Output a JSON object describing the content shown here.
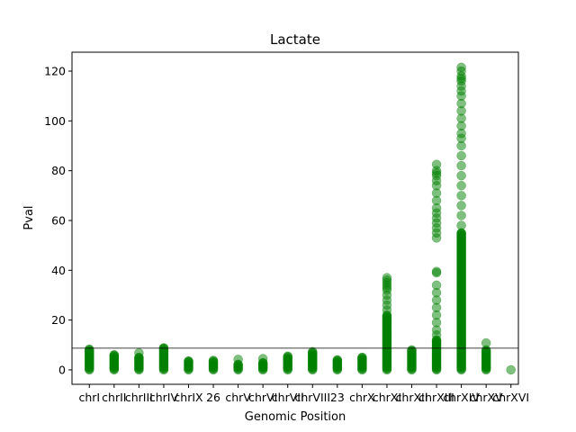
{
  "chart_data": {
    "type": "scatter",
    "title": "Lactate",
    "xlabel": "Genomic Position",
    "ylabel": "Pval",
    "ylim": [
      -5.8,
      127.6
    ],
    "yticks": [
      0,
      20,
      40,
      60,
      80,
      100,
      120
    ],
    "categories": [
      "chrI",
      "chrII",
      "chrIII",
      "chrIV",
      "chrIX",
      "26",
      "chrV",
      "chrVI",
      "chrVII",
      "chrVIII",
      "23",
      "chrX",
      "chrXI",
      "chrXII",
      "chrXIII",
      "chrXIV",
      "chrXV",
      "chrXVI"
    ],
    "threshold": 8.7,
    "grid": false,
    "legend": "none",
    "marker_color": "#008000",
    "marker_alpha": 0.5,
    "series": [
      {
        "points_by_category": [
          {
            "category": "chrI",
            "dense_max": 8.3,
            "extra": []
          },
          {
            "category": "chrII",
            "dense_max": 6.0,
            "extra": []
          },
          {
            "category": "chrIII",
            "dense_max": 5.0,
            "extra": [
              6.8
            ]
          },
          {
            "category": "chrIV",
            "dense_max": 8.8,
            "extra": []
          },
          {
            "category": "chrIX",
            "dense_max": 3.5,
            "extra": []
          },
          {
            "category": "26",
            "dense_max": 3.8,
            "extra": []
          },
          {
            "category": "chrV",
            "dense_max": 2.2,
            "extra": [
              4.2
            ]
          },
          {
            "category": "chrVI",
            "dense_max": 2.8,
            "extra": [
              4.5
            ]
          },
          {
            "category": "chrVII",
            "dense_max": 5.5,
            "extra": []
          },
          {
            "category": "chrVIII",
            "dense_max": 7.3,
            "extra": []
          },
          {
            "category": "23",
            "dense_max": 4.0,
            "extra": []
          },
          {
            "category": "chrX",
            "dense_max": 5.0,
            "extra": []
          },
          {
            "category": "chrXI",
            "dense_max": 22.0,
            "extra": [
              24,
              26,
              28,
              30,
              32,
              33,
              34,
              35,
              36,
              37
            ]
          },
          {
            "category": "chrXII",
            "dense_max": 8.0,
            "extra": []
          },
          {
            "category": "chrXIII",
            "dense_max": 12.0,
            "extra": [
              14,
              16,
              19,
              22,
              25,
              28,
              31,
              34,
              39,
              39.5,
              53,
              55,
              57,
              59,
              61,
              63,
              65,
              68,
              71,
              74,
              76,
              78,
              79,
              80,
              82.5
            ]
          },
          {
            "category": "chrXIV",
            "dense_max": 55.0,
            "extra": [
              58,
              62,
              66,
              70,
              74,
              78,
              82,
              86,
              90,
              93,
              95,
              98,
              101,
              104,
              107,
              110,
              112,
              114,
              116,
              117,
              118,
              120,
              121.5
            ]
          },
          {
            "category": "chrXV",
            "dense_max": 8.0,
            "extra": [
              10.8
            ]
          },
          {
            "category": "chrXVI",
            "dense_max": 0,
            "extra": []
          }
        ]
      }
    ]
  }
}
